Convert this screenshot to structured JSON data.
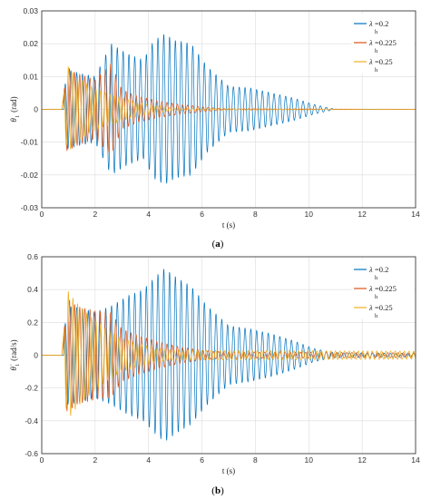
{
  "colors": {
    "s1": "#0072BD",
    "s2": "#D95319",
    "s3": "#EDB120",
    "grid": "#dcdcdc",
    "axis": "#262626"
  },
  "chart_data": [
    {
      "type": "line",
      "caption": "(a)",
      "xlabel": "t (s)",
      "ylabel_main": "θ",
      "ylabel_sub": "1",
      "ylabel_unit": "(rad)",
      "xlim": [
        0,
        14
      ],
      "ylim": [
        -0.03,
        0.03
      ],
      "xticks": [
        "0",
        "2",
        "4",
        "6",
        "8",
        "10",
        "12",
        "14"
      ],
      "yticks": [
        "-0.03",
        "-0.02",
        "-0.01",
        "0",
        "0.01",
        "0.02",
        "0.03"
      ],
      "grid": true,
      "legend_position": "top-right",
      "series": [
        {
          "name_main": "λ",
          "name_sub": "h",
          "name_rest": "=0.2",
          "envelope": {
            "t": [
              0,
              0.75,
              0.95,
              1.4,
              2.0,
              2.6,
              3.2,
              3.8,
              4.2,
              4.6,
              5.0,
              5.6,
              6.2,
              7.0,
              7.8,
              8.6,
              9.4,
              10.2,
              11.0,
              14.0
            ],
            "a": [
              0,
              0,
              0.012,
              0.011,
              0.01,
              0.02,
              0.017,
              0.015,
              0.021,
              0.023,
              0.021,
              0.02,
              0.013,
              0.007,
              0.0065,
              0.005,
              0.0035,
              0.0015,
              0,
              0
            ]
          },
          "frequency_hz": 4.6
        },
        {
          "name_main": "λ",
          "name_sub": "h",
          "name_rest": "=0.225",
          "envelope": {
            "t": [
              0,
              0.75,
              0.95,
              1.3,
              2.0,
              2.6,
              3.0,
              3.6,
              4.4,
              5.2,
              6.0,
              6.8,
              14.0
            ],
            "a": [
              0,
              0,
              0.013,
              0.011,
              0.009,
              0.014,
              0.006,
              0.004,
              0.0025,
              0.0015,
              0.0008,
              0.0002,
              0
            ]
          },
          "frequency_hz": 5.2
        },
        {
          "name_main": "λ",
          "name_sub": "h",
          "name_rest": "=0.25",
          "envelope": {
            "t": [
              0,
              0.75,
              0.95,
              1.3,
              1.8,
              2.4,
              3.0,
              3.6,
              4.4,
              5.0,
              14.0
            ],
            "a": [
              0,
              0,
              0.0135,
              0.01,
              0.007,
              0.005,
              0.0035,
              0.002,
              0.001,
              0.0003,
              0
            ]
          },
          "frequency_hz": 5.8
        }
      ]
    },
    {
      "type": "line",
      "caption": "(b)",
      "xlabel": "t (s)",
      "ylabel_main": "θ̇",
      "ylabel_sub": "1",
      "ylabel_unit": "(rad/s)",
      "xlim": [
        0,
        14
      ],
      "ylim": [
        -0.6,
        0.6
      ],
      "xticks": [
        "0",
        "2",
        "4",
        "6",
        "8",
        "10",
        "12",
        "14"
      ],
      "yticks": [
        "-0.6",
        "-0.4",
        "-0.2",
        "0",
        "0.2",
        "0.4",
        "0.6"
      ],
      "grid": true,
      "legend_position": "top-right",
      "series": [
        {
          "name_main": "λ",
          "name_sub": "h",
          "name_rest": "=0.2",
          "envelope": {
            "t": [
              0,
              0.75,
              0.95,
              1.4,
              2.0,
              2.6,
              3.2,
              3.8,
              4.2,
              4.6,
              5.0,
              5.6,
              6.2,
              7.0,
              7.8,
              8.6,
              9.4,
              10.2,
              11.0,
              14.0
            ],
            "a": [
              0,
              0,
              0.3,
              0.29,
              0.26,
              0.3,
              0.36,
              0.4,
              0.47,
              0.53,
              0.48,
              0.42,
              0.3,
              0.18,
              0.16,
              0.13,
              0.09,
              0.04,
              0.015,
              0.01
            ]
          },
          "frequency_hz": 4.6
        },
        {
          "name_main": "λ",
          "name_sub": "h",
          "name_rest": "=0.225",
          "envelope": {
            "t": [
              0,
              0.75,
              0.95,
              1.3,
              2.0,
              2.6,
              3.0,
              3.6,
              4.4,
              5.2,
              6.0,
              6.8,
              14.0
            ],
            "a": [
              0,
              0,
              0.35,
              0.3,
              0.27,
              0.26,
              0.16,
              0.12,
              0.08,
              0.05,
              0.03,
              0.02,
              0.015
            ]
          },
          "frequency_hz": 5.2
        },
        {
          "name_main": "λ",
          "name_sub": "h",
          "name_rest": "=0.25",
          "envelope": {
            "t": [
              0,
              0.75,
              0.95,
              1.3,
              1.8,
              2.4,
              3.0,
              3.6,
              4.4,
              5.0,
              14.0
            ],
            "a": [
              0,
              0,
              0.4,
              0.32,
              0.24,
              0.16,
              0.1,
              0.07,
              0.04,
              0.03,
              0.025
            ]
          },
          "frequency_hz": 5.8
        }
      ]
    }
  ]
}
